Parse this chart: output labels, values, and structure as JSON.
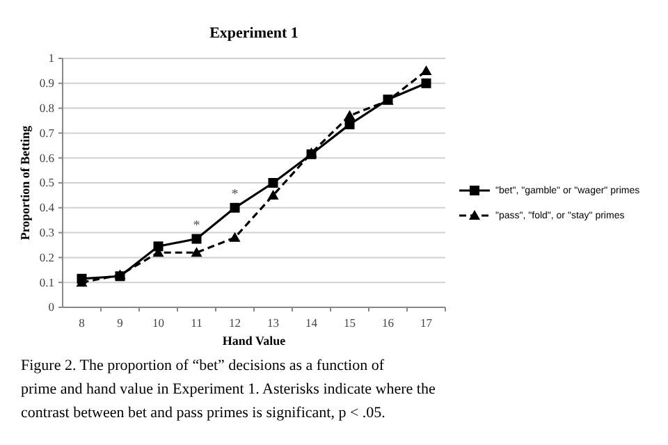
{
  "chart_data": {
    "type": "line",
    "title": "Experiment 1",
    "xlabel": "Hand Value",
    "ylabel": "Proportion of Betting",
    "categories": [
      "8",
      "9",
      "10",
      "11",
      "12",
      "13",
      "14",
      "15",
      "16",
      "17"
    ],
    "series": [
      {
        "name": "\"bet\", \"gamble\" or \"wager\" primes",
        "color": "#000000",
        "marker": "square",
        "line_style": "solid",
        "values": [
          0.115,
          0.125,
          0.245,
          0.275,
          0.4,
          0.5,
          0.615,
          0.735,
          0.835,
          0.9
        ]
      },
      {
        "name": "\"pass\", \"fold\", or \"stay\" primes",
        "color": "#000000",
        "marker": "triangle",
        "line_style": "dashed",
        "values": [
          0.1,
          0.13,
          0.22,
          0.22,
          0.28,
          0.45,
          0.62,
          0.77,
          0.83,
          0.95
        ]
      }
    ],
    "ylim": [
      0,
      1
    ],
    "yticks": [
      0,
      0.1,
      0.2,
      0.3,
      0.4,
      0.5,
      0.6,
      0.7,
      0.8,
      0.9,
      1
    ],
    "grid": "y",
    "legend": "right",
    "annotations": [
      {
        "text": "*",
        "x": "11",
        "y": 0.275
      },
      {
        "text": "*",
        "x": "12",
        "y": 0.4
      },
      "Figure 2.   The proportion of “bet” decisions as a function of prime and hand value in Experiment 1. Asterisks indicate where the contrast between bet and pass primes is significant, p < .05."
    ]
  }
}
